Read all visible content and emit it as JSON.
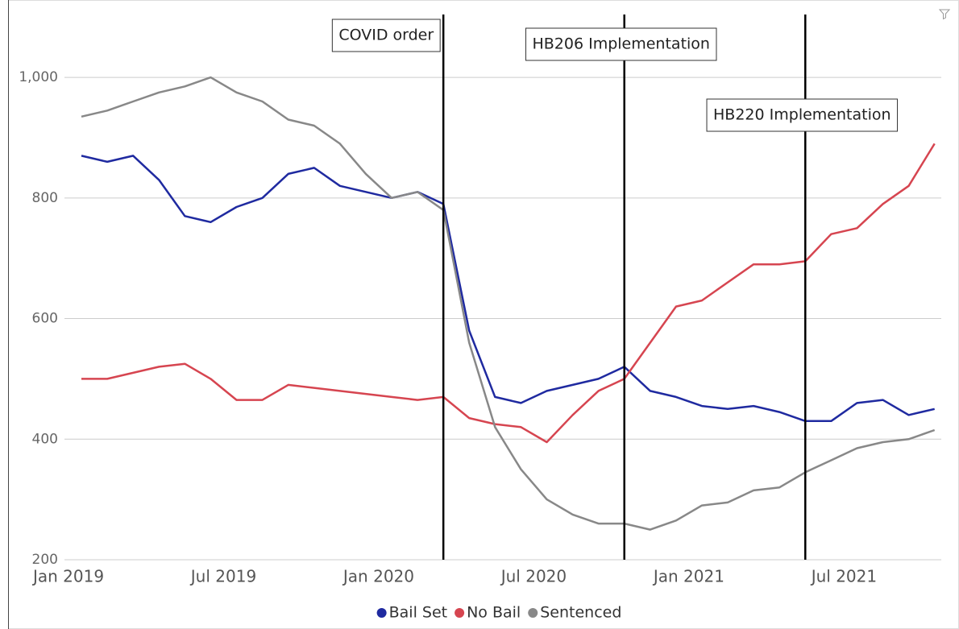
{
  "chart_data": {
    "type": "line",
    "x": [
      "2019-01",
      "2019-02",
      "2019-03",
      "2019-04",
      "2019-05",
      "2019-06",
      "2019-07",
      "2019-08",
      "2019-09",
      "2019-10",
      "2019-11",
      "2019-12",
      "2020-01",
      "2020-02",
      "2020-03",
      "2020-04",
      "2020-05",
      "2020-06",
      "2020-07",
      "2020-08",
      "2020-09",
      "2020-10",
      "2020-11",
      "2020-12",
      "2021-01",
      "2021-02",
      "2021-03",
      "2021-04",
      "2021-05",
      "2021-06",
      "2021-07",
      "2021-08",
      "2021-09",
      "2021-10"
    ],
    "series": [
      {
        "name": "Bail Set",
        "color": "#1f2aa0",
        "values": [
          870,
          860,
          870,
          830,
          770,
          760,
          785,
          800,
          840,
          850,
          820,
          810,
          800,
          810,
          790,
          580,
          470,
          460,
          480,
          490,
          500,
          520,
          480,
          470,
          455,
          450,
          455,
          445,
          430,
          430,
          460,
          465,
          440,
          450
        ]
      },
      {
        "name": "No Bail",
        "color": "#d64550",
        "values": [
          500,
          500,
          510,
          520,
          525,
          500,
          465,
          465,
          490,
          485,
          480,
          475,
          470,
          465,
          470,
          435,
          425,
          420,
          395,
          440,
          480,
          500,
          560,
          620,
          630,
          660,
          690,
          690,
          695,
          740,
          750,
          790,
          820,
          890
        ]
      },
      {
        "name": "Sentenced",
        "color": "#888888",
        "values": [
          935,
          945,
          960,
          975,
          985,
          1000,
          975,
          960,
          930,
          920,
          890,
          840,
          800,
          810,
          780,
          560,
          420,
          350,
          300,
          275,
          260,
          260,
          250,
          265,
          290,
          295,
          315,
          320,
          345,
          365,
          385,
          395,
          400,
          415
        ]
      }
    ],
    "ylim": [
      200,
      1115
    ],
    "yticks": [
      200,
      400,
      600,
      800,
      {
        "value": 1000,
        "label": "1,000"
      }
    ],
    "xticks": [
      {
        "value": "2019-01",
        "label": "Jan 2019"
      },
      {
        "value": "2019-07",
        "label": "Jul 2019"
      },
      {
        "value": "2020-01",
        "label": "Jan 2020"
      },
      {
        "value": "2020-07",
        "label": "Jul 2020"
      },
      {
        "value": "2021-01",
        "label": "Jan 2021"
      },
      {
        "value": "2021-07",
        "label": "Jul 2021"
      }
    ],
    "grid": true,
    "legend": "bottom",
    "annotations": [
      {
        "x": "2020-03",
        "label": "COVID order"
      },
      {
        "x": "2020-10",
        "label": "HB206 Implementation"
      },
      {
        "x": "2021-05",
        "label": "HB220 Implementation"
      }
    ]
  }
}
